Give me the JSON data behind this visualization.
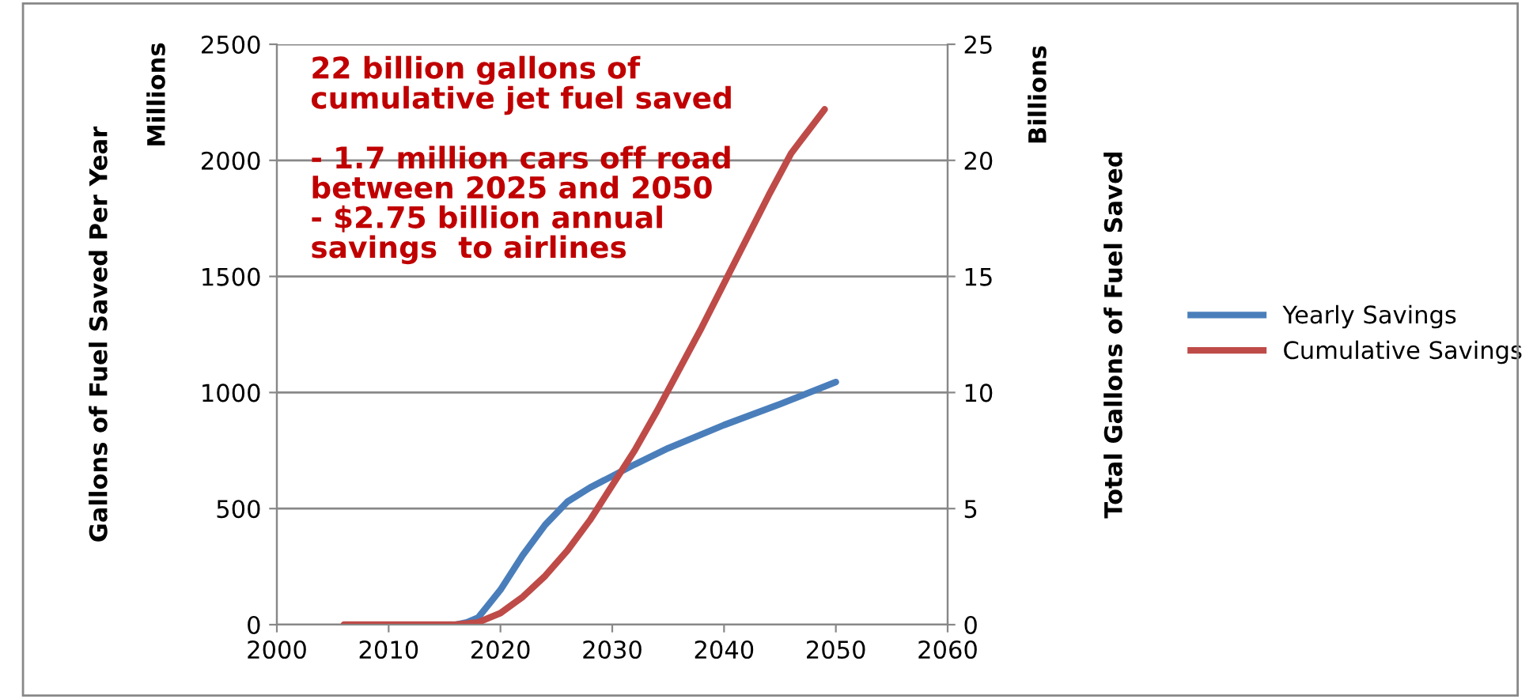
{
  "chart_data": {
    "type": "line",
    "ylabel": "Gallons of Fuel Saved Per Year",
    "y2label": "Total Gallons of Fuel Saved",
    "annotations": [
      "Millions",
      "Billions",
      "22 billion gallons of\ncumulative jet fuel saved\n\n- 1.7 million cars off road\nbetween 2025 and 2050\n- $2.75 billion annual\nsavings  to airlines"
    ],
    "xlim": [
      2000,
      2060
    ],
    "xticks": [
      2000,
      2010,
      2020,
      2030,
      2040,
      2050,
      2060
    ],
    "ylim": [
      0,
      2500
    ],
    "yticks": [
      0,
      500,
      1000,
      1500,
      2000,
      2500
    ],
    "y2lim": [
      0,
      25
    ],
    "y2ticks": [
      0,
      5,
      10,
      15,
      20,
      25
    ],
    "grid": "y",
    "legend": "right",
    "series": [
      {
        "name": "Yearly Savings",
        "color": "#4a7ebb",
        "x": [
          2016,
          2017,
          2018,
          2020,
          2022,
          2024,
          2026,
          2028,
          2030,
          2032,
          2035,
          2040,
          2045,
          2050
        ],
        "values": [
          0,
          10,
          30,
          150,
          300,
          430,
          530,
          590,
          640,
          690,
          760,
          860,
          950,
          1045
        ]
      },
      {
        "name": "Cumulative Savings",
        "color": "#be4b48",
        "axis": "y2",
        "x": [
          2006,
          2010,
          2014,
          2016,
          2018,
          2020,
          2022,
          2024,
          2026,
          2028,
          2030,
          2032,
          2034,
          2036,
          2038,
          2040,
          2042,
          2044,
          2046,
          2049
        ],
        "values": [
          0,
          0,
          0,
          0,
          0.1,
          0.5,
          1.2,
          2.1,
          3.2,
          4.5,
          6,
          7.5,
          9.2,
          11,
          12.8,
          14.7,
          16.6,
          18.5,
          20.3,
          22.2
        ]
      }
    ]
  }
}
